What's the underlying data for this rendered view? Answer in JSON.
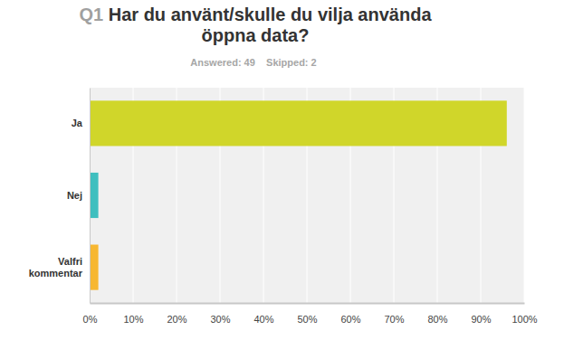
{
  "chart_data": {
    "type": "bar",
    "orientation": "horizontal",
    "question": "Q1",
    "title": "Har du använt/skulle du vilja använda öppna data?",
    "subtitle": "Answered: 49    Skipped: 2",
    "categories": [
      "Ja",
      "Nej",
      "Valfri kommentar"
    ],
    "values": [
      96,
      2,
      2
    ],
    "colors": [
      "#d0d62a",
      "#3fbfbf",
      "#f7b731"
    ],
    "xlim": [
      0,
      100
    ],
    "xticks": [
      {
        "value": 0,
        "label": "0%"
      },
      {
        "value": 10,
        "label": "10%"
      },
      {
        "value": 20,
        "label": "20%"
      },
      {
        "value": 30,
        "label": "30%"
      },
      {
        "value": 40,
        "label": "40%"
      },
      {
        "value": 50,
        "label": "50%"
      },
      {
        "value": 60,
        "label": "60%"
      },
      {
        "value": 70,
        "label": "70%"
      },
      {
        "value": 80,
        "label": "80%"
      },
      {
        "value": 90,
        "label": "90%"
      },
      {
        "value": 100,
        "label": "100%"
      }
    ],
    "grid": true
  }
}
